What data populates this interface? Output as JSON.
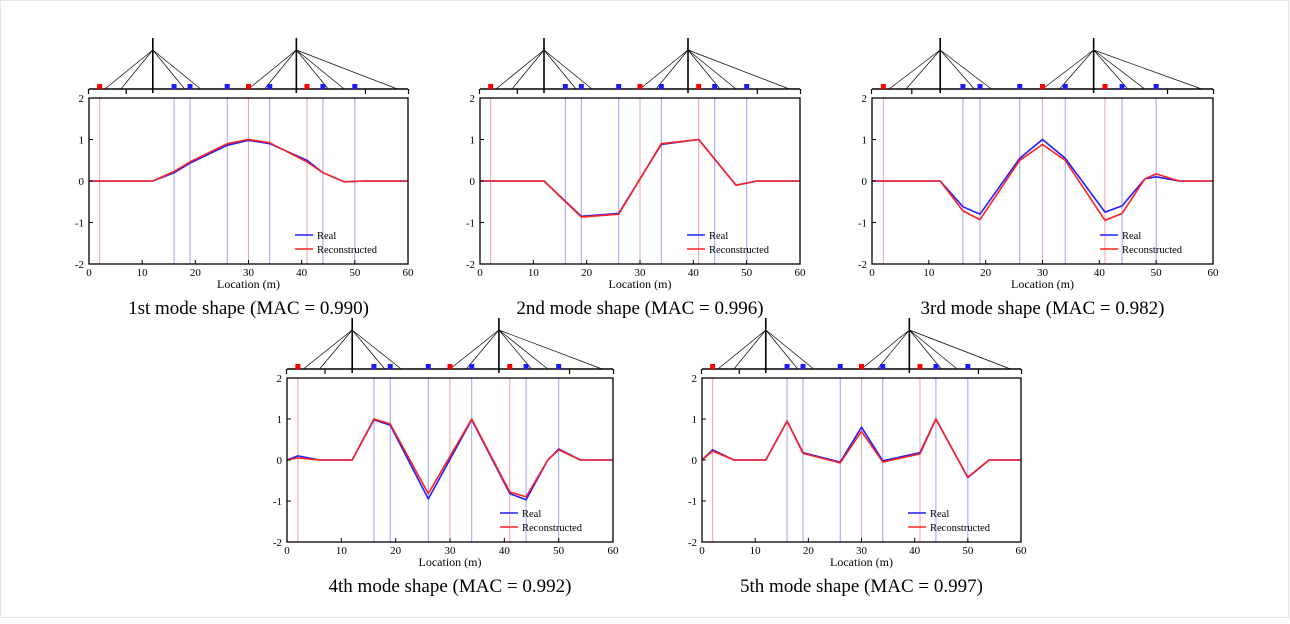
{
  "colors": {
    "real": "#1f1fff",
    "reconstructed": "#ff2020",
    "sensor_red": "#ff0000",
    "sensor_blue": "#1a1aff",
    "red_line": "#f2a0a0",
    "blue_line": "#a0a0f2"
  },
  "chart_data": [
    {
      "type": "line",
      "caption": "1st mode shape (MAC = 0.990)",
      "xlabel": "Location (m)",
      "ylabel": "",
      "xlim": [
        0,
        60
      ],
      "ylim": [
        -2,
        2
      ],
      "x_ticks": [
        "0",
        "10",
        "20",
        "30",
        "40",
        "50",
        "60"
      ],
      "y_ticks": [
        "2",
        "1",
        "0",
        "-1",
        "-2"
      ],
      "legend": {
        "position": "bottom-right",
        "labels": [
          "Real",
          "Reconstructed"
        ]
      },
      "red_sensors": [
        2,
        30,
        41
      ],
      "blue_sensors": [
        16,
        19,
        26,
        34,
        44,
        50
      ],
      "series": [
        {
          "name": "Real",
          "points": [
            [
              0,
              0
            ],
            [
              12,
              0
            ],
            [
              16,
              0.2
            ],
            [
              19,
              0.43
            ],
            [
              26,
              0.86
            ],
            [
              30,
              0.98
            ],
            [
              34,
              0.9
            ],
            [
              41,
              0.5
            ],
            [
              44,
              0.2
            ],
            [
              48,
              -0.02
            ],
            [
              52,
              0
            ],
            [
              60,
              0
            ]
          ]
        },
        {
          "name": "Reconstructed",
          "points": [
            [
              0,
              0
            ],
            [
              12,
              0
            ],
            [
              16,
              0.23
            ],
            [
              19,
              0.46
            ],
            [
              26,
              0.9
            ],
            [
              30,
              1.0
            ],
            [
              34,
              0.92
            ],
            [
              41,
              0.46
            ],
            [
              44,
              0.2
            ],
            [
              48,
              -0.02
            ],
            [
              52,
              0
            ],
            [
              60,
              0
            ]
          ]
        }
      ]
    },
    {
      "type": "line",
      "caption": "2nd mode shape (MAC = 0.996)",
      "xlabel": "Location (m)",
      "ylabel": "",
      "xlim": [
        0,
        60
      ],
      "ylim": [
        -2,
        2
      ],
      "x_ticks": [
        "0",
        "10",
        "20",
        "30",
        "40",
        "50",
        "60"
      ],
      "y_ticks": [
        "2",
        "1",
        "0",
        "-1",
        "-2"
      ],
      "legend": {
        "position": "bottom-right",
        "labels": [
          "Real",
          "Reconstructed"
        ]
      },
      "red_sensors": [
        2,
        30,
        41
      ],
      "blue_sensors": [
        16,
        19,
        26,
        34,
        44,
        50
      ],
      "series": [
        {
          "name": "Real",
          "points": [
            [
              0,
              0
            ],
            [
              12,
              0
            ],
            [
              19,
              -0.85
            ],
            [
              26,
              -0.78
            ],
            [
              34,
              0.88
            ],
            [
              41,
              1.0
            ],
            [
              48,
              -0.1
            ],
            [
              52,
              0
            ],
            [
              60,
              0
            ]
          ]
        },
        {
          "name": "Reconstructed",
          "points": [
            [
              0,
              0
            ],
            [
              12,
              0
            ],
            [
              19,
              -0.87
            ],
            [
              26,
              -0.8
            ],
            [
              34,
              0.9
            ],
            [
              41,
              1.0
            ],
            [
              48,
              -0.1
            ],
            [
              52,
              0
            ],
            [
              60,
              0
            ]
          ]
        }
      ]
    },
    {
      "type": "line",
      "caption": "3rd mode shape (MAC = 0.982)",
      "xlabel": "Location (m)",
      "ylabel": "",
      "xlim": [
        0,
        60
      ],
      "ylim": [
        -2,
        2
      ],
      "x_ticks": [
        "0",
        "10",
        "20",
        "30",
        "40",
        "50",
        "60"
      ],
      "y_ticks": [
        "2",
        "1",
        "0",
        "-1",
        "-2"
      ],
      "legend": {
        "position": "bottom-right",
        "labels": [
          "Real",
          "Reconstructed"
        ]
      },
      "red_sensors": [
        2,
        30,
        41
      ],
      "blue_sensors": [
        16,
        19,
        26,
        34,
        44,
        50
      ],
      "series": [
        {
          "name": "Real",
          "points": [
            [
              0,
              0
            ],
            [
              6,
              0
            ],
            [
              12,
              0
            ],
            [
              16,
              -0.62
            ],
            [
              19,
              -0.8
            ],
            [
              26,
              0.55
            ],
            [
              30,
              1.0
            ],
            [
              34,
              0.55
            ],
            [
              41,
              -0.75
            ],
            [
              44,
              -0.6
            ],
            [
              48,
              0.05
            ],
            [
              50,
              0.1
            ],
            [
              54,
              0
            ],
            [
              60,
              0
            ]
          ]
        },
        {
          "name": "Reconstructed",
          "points": [
            [
              0,
              0
            ],
            [
              6,
              0
            ],
            [
              12,
              0
            ],
            [
              16,
              -0.72
            ],
            [
              19,
              -0.93
            ],
            [
              26,
              0.5
            ],
            [
              30,
              0.88
            ],
            [
              34,
              0.5
            ],
            [
              41,
              -0.95
            ],
            [
              44,
              -0.78
            ],
            [
              48,
              0.05
            ],
            [
              50,
              0.17
            ],
            [
              54,
              0
            ],
            [
              60,
              0
            ]
          ]
        }
      ]
    },
    {
      "type": "line",
      "caption": "4th mode shape (MAC = 0.992)",
      "xlabel": "Location (m)",
      "ylabel": "",
      "xlim": [
        0,
        60
      ],
      "ylim": [
        -2,
        2
      ],
      "x_ticks": [
        "0",
        "10",
        "20",
        "30",
        "40",
        "50",
        "60"
      ],
      "y_ticks": [
        "2",
        "1",
        "0",
        "-1",
        "-2"
      ],
      "legend": {
        "position": "bottom-right",
        "labels": [
          "Real",
          "Reconstructed"
        ]
      },
      "red_sensors": [
        2,
        30,
        41
      ],
      "blue_sensors": [
        16,
        19,
        26,
        34,
        44,
        50
      ],
      "series": [
        {
          "name": "Real",
          "points": [
            [
              0,
              0
            ],
            [
              2,
              0.1
            ],
            [
              6,
              0
            ],
            [
              12,
              0
            ],
            [
              16,
              0.98
            ],
            [
              19,
              0.85
            ],
            [
              26,
              -0.95
            ],
            [
              34,
              0.98
            ],
            [
              41,
              -0.82
            ],
            [
              44,
              -0.97
            ],
            [
              48,
              0
            ],
            [
              50,
              0.27
            ],
            [
              54,
              0
            ],
            [
              60,
              0
            ]
          ]
        },
        {
          "name": "Reconstructed",
          "points": [
            [
              0,
              0
            ],
            [
              2,
              0.05
            ],
            [
              6,
              0
            ],
            [
              12,
              0
            ],
            [
              16,
              1.0
            ],
            [
              19,
              0.88
            ],
            [
              26,
              -0.82
            ],
            [
              34,
              1.0
            ],
            [
              41,
              -0.78
            ],
            [
              44,
              -0.9
            ],
            [
              48,
              0
            ],
            [
              50,
              0.25
            ],
            [
              54,
              0
            ],
            [
              60,
              0
            ]
          ]
        }
      ]
    },
    {
      "type": "line",
      "caption": "5th mode shape (MAC = 0.997)",
      "xlabel": "Location (m)",
      "ylabel": "",
      "xlim": [
        0,
        60
      ],
      "ylim": [
        -2,
        2
      ],
      "x_ticks": [
        "0",
        "10",
        "20",
        "30",
        "40",
        "50",
        "60"
      ],
      "y_ticks": [
        "2",
        "1",
        "0",
        "-1",
        "-2"
      ],
      "legend": {
        "position": "bottom-right",
        "labels": [
          "Real",
          "Reconstructed"
        ]
      },
      "red_sensors": [
        2,
        30,
        41
      ],
      "blue_sensors": [
        16,
        19,
        26,
        34,
        44,
        50
      ],
      "series": [
        {
          "name": "Real",
          "points": [
            [
              0,
              0
            ],
            [
              2,
              0.25
            ],
            [
              6,
              0
            ],
            [
              12,
              0
            ],
            [
              16,
              0.95
            ],
            [
              19,
              0.18
            ],
            [
              26,
              -0.05
            ],
            [
              30,
              0.8
            ],
            [
              34,
              -0.02
            ],
            [
              41,
              0.18
            ],
            [
              44,
              1.0
            ],
            [
              50,
              -0.43
            ],
            [
              54,
              0
            ],
            [
              60,
              0
            ]
          ]
        },
        {
          "name": "Reconstructed",
          "points": [
            [
              0,
              0
            ],
            [
              2,
              0.22
            ],
            [
              6,
              0
            ],
            [
              12,
              0
            ],
            [
              16,
              0.95
            ],
            [
              19,
              0.16
            ],
            [
              26,
              -0.07
            ],
            [
              30,
              0.7
            ],
            [
              34,
              -0.05
            ],
            [
              41,
              0.15
            ],
            [
              44,
              1.0
            ],
            [
              50,
              -0.42
            ],
            [
              54,
              0
            ],
            [
              60,
              0
            ]
          ]
        }
      ]
    }
  ]
}
